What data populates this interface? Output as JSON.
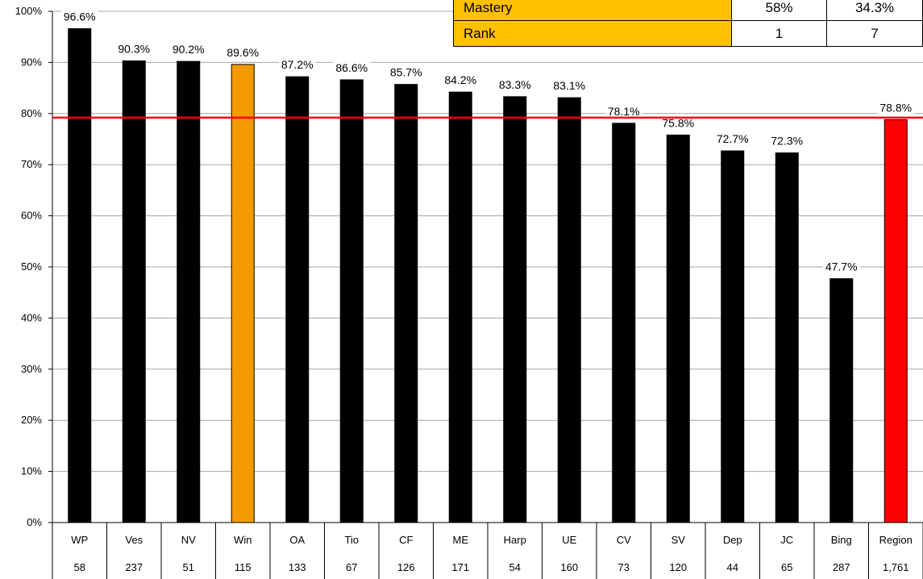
{
  "chart_data": {
    "type": "bar",
    "categories": [
      "WP",
      "Ves",
      "NV",
      "Win",
      "OA",
      "Tio",
      "CF",
      "ME",
      "Harp",
      "UE",
      "CV",
      "SV",
      "Dep",
      "JC",
      "Bing",
      "Region"
    ],
    "counts": [
      "58",
      "237",
      "51",
      "115",
      "133",
      "67",
      "126",
      "171",
      "54",
      "160",
      "73",
      "120",
      "44",
      "65",
      "287",
      "1,761"
    ],
    "values": [
      96.6,
      90.3,
      90.2,
      89.6,
      87.2,
      86.6,
      85.7,
      84.2,
      83.3,
      83.1,
      78.1,
      75.8,
      72.7,
      72.3,
      47.7,
      78.8
    ],
    "value_labels": [
      "96.6%",
      "90.3%",
      "90.2%",
      "89.6%",
      "87.2%",
      "86.6%",
      "85.7%",
      "84.2%",
      "83.3%",
      "83.1%",
      "78.1%",
      "75.8%",
      "72.7%",
      "72.3%",
      "47.7%",
      "78.8%"
    ],
    "yticks": [
      "0%",
      "10%",
      "20%",
      "30%",
      "40%",
      "50%",
      "60%",
      "70%",
      "80%",
      "90%",
      "100%"
    ],
    "ylim": [
      0,
      100
    ],
    "reference_line": 79.2,
    "colors": {
      "default": "#000000",
      "highlight": "#f29a00",
      "region": "#ff0000",
      "reference": "#ff0000",
      "grid": "#a6a6a6"
    },
    "highlight_index": 3,
    "region_index": 15,
    "grid": true,
    "title": "",
    "xlabel": "",
    "ylabel": ""
  },
  "table": {
    "rows": [
      {
        "label": "Mastery",
        "col1": "58%",
        "col2": "34.3%"
      },
      {
        "label": "Rank",
        "col1": "1",
        "col2": "7"
      }
    ]
  }
}
